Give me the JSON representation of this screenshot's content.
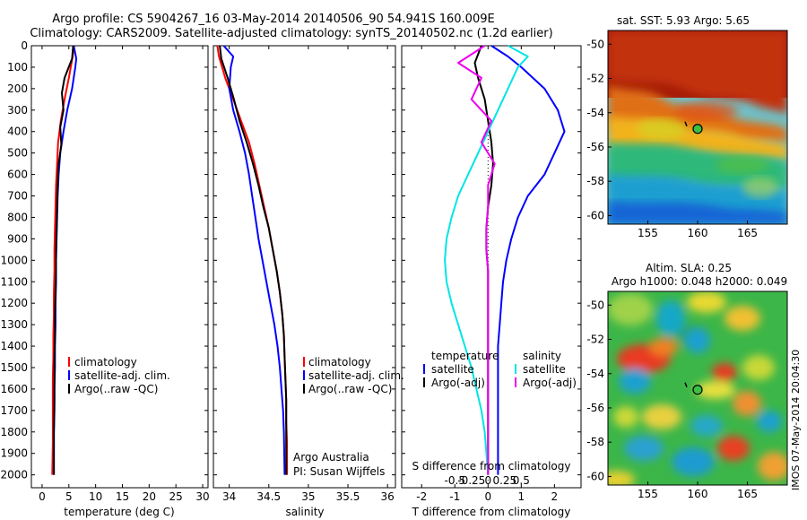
{
  "header": {
    "line1": "Argo profile: CS 5904267_16 03-May-2014 20140506_90 54.941S 160.009E",
    "line2": "Climatology: CARS2009. Satellite-adjusted climatology: synTS_20140502.nc (1.2d earlier)"
  },
  "colors": {
    "climatology": "#ff0000",
    "satellite": "#0000ff",
    "argo": "#000000",
    "cyan": "#00e5e5",
    "magenta": "#ee00ee"
  },
  "chart_data": [
    {
      "type": "line",
      "panel": "temperature",
      "xlabel": "temperature (deg C)",
      "ylabel": "",
      "xlim": [
        -2,
        31
      ],
      "ylim": [
        2060,
        0
      ],
      "x_ticks": [
        "0",
        "5",
        "10",
        "15",
        "20",
        "25",
        "30"
      ],
      "x_tick_values": [
        0,
        5,
        10,
        15,
        20,
        25,
        30
      ],
      "y_ticks": [
        "0",
        "100",
        "200",
        "300",
        "400",
        "500",
        "600",
        "700",
        "800",
        "900",
        "1000",
        "1100",
        "1200",
        "1300",
        "1400",
        "1500",
        "1600",
        "1700",
        "1800",
        "1900",
        "2000"
      ],
      "y_tick_values": [
        0,
        100,
        200,
        300,
        400,
        500,
        600,
        700,
        800,
        900,
        1000,
        1100,
        1200,
        1300,
        1400,
        1500,
        1600,
        1700,
        1800,
        1900,
        2000
      ],
      "legend": [
        "climatology",
        "satellite-adj. clim.",
        "Argo(..raw -QC)"
      ],
      "series": [
        {
          "name": "climatology",
          "color": "#ff0000",
          "x": [
            6.0,
            5.7,
            5.0,
            4.2,
            3.5,
            3.0,
            2.8,
            2.6,
            2.5,
            2.4,
            2.3,
            2.3,
            2.2,
            2.2,
            2.1,
            2.1,
            2.0,
            2.0,
            2.0,
            2.0,
            1.9
          ],
          "depth": [
            0,
            50,
            150,
            250,
            350,
            450,
            550,
            650,
            750,
            850,
            950,
            1050,
            1150,
            1250,
            1350,
            1450,
            1550,
            1650,
            1750,
            1850,
            2000
          ]
        },
        {
          "name": "satellite-adj. clim.",
          "color": "#0000ff",
          "x": [
            5.9,
            6.4,
            6.2,
            5.6,
            4.7,
            4.0,
            3.4,
            3.1,
            2.9,
            2.8,
            2.7,
            2.6,
            2.6,
            2.5,
            2.5,
            2.4,
            2.4,
            2.3,
            2.3,
            2.2,
            2.2
          ],
          "depth": [
            0,
            60,
            100,
            200,
            300,
            400,
            500,
            600,
            700,
            800,
            900,
            1000,
            1100,
            1200,
            1300,
            1400,
            1500,
            1600,
            1700,
            1800,
            2000
          ]
        },
        {
          "name": "Argo(..raw -QC)",
          "color": "#000000",
          "x": [
            5.8,
            5.6,
            4.2,
            3.7,
            4.0,
            3.4,
            3.6,
            3.1,
            2.9,
            2.8,
            2.7,
            2.6,
            2.6,
            2.5,
            2.4,
            2.4,
            2.3,
            2.3,
            2.3,
            2.2,
            2.2
          ],
          "depth": [
            0,
            60,
            150,
            220,
            300,
            380,
            460,
            550,
            650,
            750,
            850,
            950,
            1050,
            1150,
            1250,
            1350,
            1450,
            1550,
            1650,
            1800,
            2000
          ]
        }
      ]
    },
    {
      "type": "line",
      "panel": "salinity",
      "xlabel": "salinity",
      "xlim": [
        33.8,
        36.1
      ],
      "ylim": [
        2060,
        0
      ],
      "x_ticks": [
        "34",
        "34.5",
        "35",
        "35.5",
        "36"
      ],
      "x_tick_values": [
        34,
        34.5,
        35,
        35.5,
        36
      ],
      "legend": [
        "climatology",
        "satellite-adj. clim.",
        "Argo(..raw -QC)"
      ],
      "annotation": [
        "Argo Australia",
        "PI: Susan Wijffels"
      ],
      "series": [
        {
          "name": "climatology",
          "color": "#ff0000",
          "x": [
            33.85,
            33.87,
            33.95,
            34.05,
            34.15,
            34.25,
            34.32,
            34.38,
            34.44,
            34.5,
            34.55,
            34.6,
            34.64,
            34.67,
            34.69,
            34.7,
            34.71,
            34.72,
            34.72,
            34.73,
            34.73
          ],
          "depth": [
            0,
            50,
            150,
            250,
            350,
            450,
            550,
            650,
            750,
            850,
            950,
            1050,
            1150,
            1250,
            1350,
            1450,
            1550,
            1650,
            1750,
            1850,
            2000
          ]
        },
        {
          "name": "satellite-adj. clim.",
          "color": "#0000ff",
          "x": [
            33.93,
            34.05,
            34.02,
            34.0,
            34.05,
            34.13,
            34.2,
            34.25,
            34.29,
            34.33,
            34.37,
            34.42,
            34.47,
            34.52,
            34.57,
            34.61,
            34.64,
            34.66,
            34.68,
            34.69,
            34.7
          ],
          "depth": [
            0,
            50,
            100,
            200,
            300,
            400,
            500,
            600,
            700,
            800,
            900,
            1000,
            1100,
            1200,
            1300,
            1400,
            1500,
            1600,
            1700,
            1800,
            2000
          ]
        },
        {
          "name": "Argo(..raw -QC)",
          "color": "#000000",
          "x": [
            33.88,
            33.9,
            33.98,
            34.06,
            34.13,
            34.22,
            34.3,
            34.37,
            34.43,
            34.5,
            34.55,
            34.6,
            34.64,
            34.67,
            34.69,
            34.7,
            34.71,
            34.72,
            34.72,
            34.72,
            34.72
          ],
          "depth": [
            0,
            60,
            150,
            250,
            350,
            450,
            550,
            650,
            750,
            850,
            950,
            1050,
            1150,
            1250,
            1350,
            1450,
            1550,
            1650,
            1750,
            1850,
            2000
          ]
        }
      ]
    },
    {
      "type": "line",
      "panel": "difference",
      "xlabel": "T difference from climatology",
      "xlabel_top": "S difference from climatology",
      "xlim": [
        -2.6,
        2.8
      ],
      "ylim": [
        2060,
        0
      ],
      "x_ticks": [
        "-2",
        "-1",
        "0",
        "1",
        "2"
      ],
      "x_tick_values": [
        -2,
        -1,
        0,
        1,
        2
      ],
      "s_ticks": [
        "-0.5",
        "-0.25",
        "0",
        "0.25",
        "0.5"
      ],
      "legend": [
        "temperature",
        "satellite",
        "Argo(-adj)",
        "salinity",
        "satellite",
        "Argo(-adj)"
      ],
      "series": [
        {
          "name": "satellite",
          "color": "#0000ff",
          "x": [
            0.1,
            0.6,
            1.0,
            1.7,
            2.1,
            2.3,
            2.0,
            1.7,
            1.2,
            0.9,
            0.7,
            0.55,
            0.45,
            0.4,
            0.35,
            0.3,
            0.3,
            0.3,
            0.3,
            0.3,
            0.3
          ],
          "depth": [
            0,
            50,
            100,
            200,
            300,
            400,
            500,
            600,
            700,
            800,
            900,
            1000,
            1100,
            1200,
            1300,
            1400,
            1500,
            1600,
            1700,
            1800,
            2000
          ]
        },
        {
          "name": "Argo(-adj)",
          "color": "#000000",
          "x": [
            -0.2,
            -0.4,
            -0.3,
            -0.1,
            0.0,
            0.1,
            0.15,
            0.1,
            0.0,
            -0.05,
            -0.05,
            0.0,
            0.0,
            0.0,
            0.0,
            0.0,
            0.0,
            0.0,
            0.0,
            0.0,
            0.0
          ],
          "depth": [
            0,
            80,
            150,
            250,
            350,
            450,
            550,
            650,
            750,
            850,
            950,
            1050,
            1150,
            1250,
            1350,
            1450,
            1550,
            1650,
            1750,
            1850,
            2000
          ]
        },
        {
          "name": "satellite",
          "color": "#00e5e5",
          "x": [
            0.6,
            1.2,
            0.9,
            0.6,
            0.3,
            0.0,
            -0.3,
            -0.6,
            -0.9,
            -1.1,
            -1.25,
            -1.3,
            -1.25,
            -1.1,
            -0.9,
            -0.7,
            -0.5,
            -0.35,
            -0.2,
            -0.1,
            0.0
          ],
          "depth": [
            0,
            50,
            100,
            200,
            300,
            400,
            500,
            600,
            700,
            800,
            900,
            1000,
            1100,
            1200,
            1300,
            1400,
            1500,
            1600,
            1700,
            1800,
            2000
          ]
        },
        {
          "name": "Argo(-adj)",
          "color": "#ee00ee",
          "x": [
            -0.1,
            -0.9,
            -0.2,
            -0.5,
            0.1,
            -0.2,
            0.2,
            0.0,
            0.0,
            -0.05,
            -0.05,
            0.0,
            0.0,
            0.0,
            0.0,
            0.0,
            0.0,
            0.0,
            0.0,
            0.0,
            0.0
          ],
          "depth": [
            0,
            80,
            150,
            250,
            350,
            450,
            550,
            650,
            750,
            850,
            950,
            1050,
            1150,
            1250,
            1350,
            1450,
            1550,
            1650,
            1750,
            1850,
            2000
          ]
        }
      ]
    },
    {
      "type": "heatmap",
      "panel": "sst-map",
      "title": "sat. SST: 5.93  Argo: 5.65",
      "x_ticks": [
        "155",
        "160",
        "165"
      ],
      "x_tick_values": [
        155,
        160,
        165
      ],
      "y_ticks": [
        "-50",
        "-52",
        "-54",
        "-56",
        "-58",
        "-60"
      ],
      "y_tick_values": [
        -50,
        -52,
        -54,
        -56,
        -58,
        -60
      ],
      "xlim": [
        151,
        169
      ],
      "ylim": [
        -60.5,
        -49.2
      ],
      "marker": {
        "lon": 160.0,
        "lat": -54.94
      }
    },
    {
      "type": "heatmap",
      "panel": "sla-map",
      "title": "Altim. SLA: 0.25",
      "subtitle": "Argo h1000: 0.048  h2000: 0.049",
      "x_ticks": [
        "155",
        "160",
        "165"
      ],
      "x_tick_values": [
        155,
        160,
        165
      ],
      "y_ticks": [
        "-50",
        "-52",
        "-54",
        "-56",
        "-58",
        "-60"
      ],
      "y_tick_values": [
        -50,
        -52,
        -54,
        -56,
        -58,
        -60
      ],
      "xlim": [
        151,
        169
      ],
      "ylim": [
        -60.5,
        -49.2
      ],
      "marker": {
        "lon": 160.0,
        "lat": -54.94
      }
    }
  ],
  "footer": {
    "watermark": "IMOS 07-May-2014 20:04:30"
  }
}
